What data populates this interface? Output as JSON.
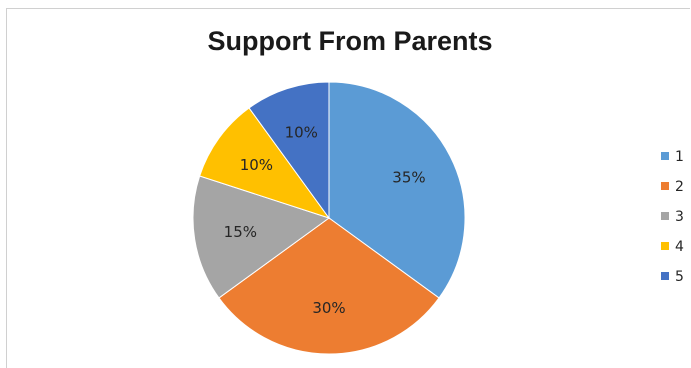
{
  "chart_data": {
    "type": "pie",
    "title": "Support From Parents",
    "categories": [
      "1",
      "2",
      "3",
      "4",
      "5"
    ],
    "values": [
      35,
      30,
      15,
      10,
      10
    ],
    "labels": [
      "35%",
      "30%",
      "15%",
      "10%",
      "10%"
    ],
    "colors": [
      "#5B9BD5",
      "#ED7D31",
      "#A5A5A5",
      "#FFC000",
      "#4472C4"
    ],
    "legend_position": "right"
  }
}
